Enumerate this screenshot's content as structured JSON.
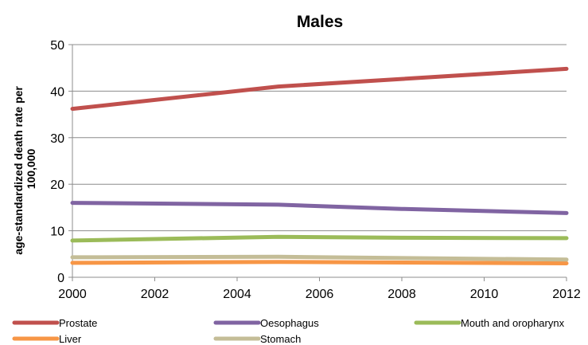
{
  "chart_data": {
    "type": "line",
    "title": "Males",
    "ylabel_lines": [
      "age-standardized death rate per",
      "100,000"
    ],
    "xlabel": "",
    "xlim": [
      2000,
      2012
    ],
    "ylim": [
      0,
      50
    ],
    "x_ticks": [
      2000,
      2002,
      2004,
      2006,
      2008,
      2010,
      2012
    ],
    "y_ticks": [
      0,
      10,
      20,
      30,
      40,
      50
    ],
    "grid": "horizontal",
    "legend_position": "bottom",
    "series": [
      {
        "name": "Prostate",
        "color": "#c0504d",
        "points": [
          [
            2000,
            36.2
          ],
          [
            2005,
            41.0
          ],
          [
            2012,
            44.8
          ]
        ]
      },
      {
        "name": "Oesophagus",
        "color": "#8064a2",
        "points": [
          [
            2000,
            16.0
          ],
          [
            2005,
            15.6
          ],
          [
            2008,
            14.7
          ],
          [
            2012,
            13.8
          ]
        ]
      },
      {
        "name": "Mouth and oropharynx",
        "color": "#9bbb59",
        "points": [
          [
            2000,
            7.9
          ],
          [
            2005,
            8.7
          ],
          [
            2008,
            8.5
          ],
          [
            2012,
            8.4
          ]
        ]
      },
      {
        "name": "Liver",
        "color": "#f79646",
        "points": [
          [
            2000,
            3.1
          ],
          [
            2005,
            3.3
          ],
          [
            2012,
            3.0
          ]
        ]
      },
      {
        "name": "Stomach",
        "color": "#c4bd97",
        "points": [
          [
            2000,
            4.3
          ],
          [
            2005,
            4.4
          ],
          [
            2012,
            3.8
          ]
        ]
      }
    ]
  }
}
